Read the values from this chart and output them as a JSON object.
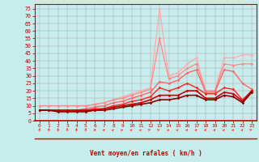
{
  "xlabel": "Vent moyen/en rafales ( km/h )",
  "bg_color": "#c8ecec",
  "xlim": [
    -0.5,
    23.5
  ],
  "ylim": [
    0,
    78
  ],
  "yticks": [
    0,
    5,
    10,
    15,
    20,
    25,
    30,
    35,
    40,
    45,
    50,
    55,
    60,
    65,
    70,
    75
  ],
  "xticks": [
    0,
    1,
    2,
    3,
    4,
    5,
    6,
    7,
    8,
    9,
    10,
    11,
    12,
    13,
    14,
    15,
    16,
    17,
    18,
    19,
    20,
    21,
    22,
    23
  ],
  "series": [
    {
      "color": "#ffaaaa",
      "lw": 0.9,
      "values": [
        10,
        10,
        10,
        10,
        10,
        10,
        11,
        12,
        14,
        16,
        18,
        20,
        22,
        75,
        30,
        32,
        38,
        42,
        20,
        20,
        42,
        42,
        44,
        44
      ]
    },
    {
      "color": "#ff8888",
      "lw": 0.9,
      "values": [
        10,
        10,
        10,
        10,
        10,
        10,
        11,
        12,
        14,
        15,
        17,
        19,
        21,
        55,
        28,
        30,
        35,
        38,
        20,
        20,
        38,
        37,
        38,
        38
      ]
    },
    {
      "color": "#ff6666",
      "lw": 1.0,
      "values": [
        7,
        7,
        7,
        7,
        7,
        8,
        9,
        10,
        12,
        13,
        15,
        17,
        19,
        26,
        25,
        27,
        32,
        34,
        19,
        19,
        34,
        33,
        25,
        21
      ]
    },
    {
      "color": "#ff2222",
      "lw": 1.0,
      "values": [
        7,
        7,
        7,
        7,
        7,
        7,
        8,
        8,
        10,
        11,
        13,
        14,
        16,
        22,
        20,
        22,
        25,
        22,
        18,
        18,
        22,
        21,
        14,
        20
      ]
    },
    {
      "color": "#cc0000",
      "lw": 1.2,
      "values": [
        7,
        7,
        7,
        7,
        7,
        7,
        7,
        8,
        9,
        10,
        11,
        12,
        14,
        17,
        17,
        17,
        20,
        20,
        15,
        15,
        19,
        18,
        13,
        20
      ]
    },
    {
      "color": "#880000",
      "lw": 1.2,
      "values": [
        7,
        7,
        6,
        6,
        6,
        6,
        7,
        7,
        8,
        9,
        10,
        11,
        12,
        14,
        14,
        15,
        17,
        17,
        14,
        14,
        17,
        16,
        12,
        19
      ]
    }
  ],
  "arrow_angles": [
    0,
    0,
    0,
    0,
    0,
    0,
    30,
    45,
    60,
    70,
    60,
    60,
    80,
    80,
    60,
    60,
    50,
    50,
    45,
    45,
    50,
    50,
    50,
    80
  ],
  "arrow_color": "#ff4444",
  "tick_color": "#cc0000",
  "label_color": "#cc0000"
}
